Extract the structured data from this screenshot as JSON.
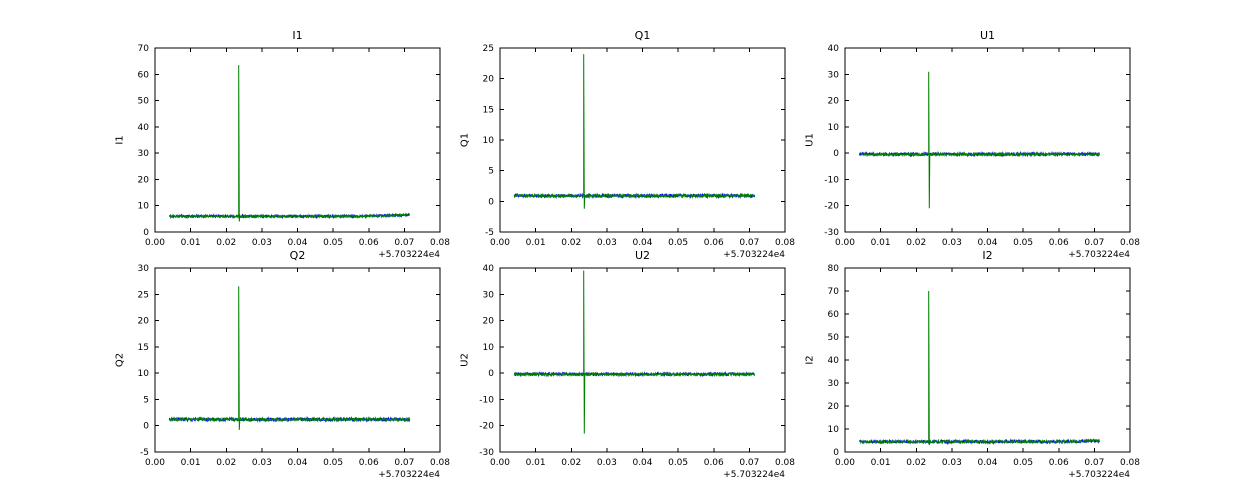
{
  "background": "#ffffff",
  "chart_data": [
    {
      "type": "line",
      "title": "I1",
      "ylabel": "I1",
      "xlim": [
        0,
        0.08
      ],
      "ylim": [
        0,
        70
      ],
      "xtick_labels": [
        "0.00",
        "0.01",
        "0.02",
        "0.03",
        "0.04",
        "0.05",
        "0.06",
        "0.07",
        "0.08"
      ],
      "ytick_labels": [
        "0",
        "10",
        "20",
        "30",
        "40",
        "50",
        "60",
        "70"
      ],
      "x_offset": "+5.703224e4",
      "x_start": 0.004,
      "x_end": 0.0715,
      "baseline": 6.0,
      "noise": 0.45,
      "drift": {
        "start": 0.058,
        "amount": 0.5
      },
      "spike": {
        "x": 0.0235,
        "peak": 63.5,
        "min": 4.0
      },
      "grid": false,
      "legend": "none",
      "series": [
        {
          "name": "blue",
          "color": "#0000ff",
          "spike": false,
          "noise_scale": 1.0
        },
        {
          "name": "green",
          "color": "#008000",
          "spike": true,
          "noise_scale": 0.9
        }
      ]
    },
    {
      "type": "line",
      "title": "Q1",
      "ylabel": "Q1",
      "xlim": [
        0,
        0.08
      ],
      "ylim": [
        -5,
        25
      ],
      "xtick_labels": [
        "0.00",
        "0.01",
        "0.02",
        "0.03",
        "0.04",
        "0.05",
        "0.06",
        "0.07",
        "0.08"
      ],
      "ytick_labels": [
        "-5",
        "0",
        "5",
        "10",
        "15",
        "20",
        "25"
      ],
      "x_offset": "+5.703224e4",
      "x_start": 0.004,
      "x_end": 0.0715,
      "baseline": 0.9,
      "noise": 0.25,
      "spike": {
        "x": 0.0235,
        "peak": 24.0,
        "min": -1.2
      },
      "grid": false,
      "legend": "none",
      "series": [
        {
          "name": "blue",
          "color": "#0000ff",
          "spike": false,
          "noise_scale": 1.0
        },
        {
          "name": "green",
          "color": "#008000",
          "spike": true,
          "noise_scale": 0.9
        }
      ]
    },
    {
      "type": "line",
      "title": "U1",
      "ylabel": "U1",
      "xlim": [
        0,
        0.08
      ],
      "ylim": [
        -30,
        40
      ],
      "xtick_labels": [
        "0.00",
        "0.01",
        "0.02",
        "0.03",
        "0.04",
        "0.05",
        "0.06",
        "0.07",
        "0.08"
      ],
      "ytick_labels": [
        "-30",
        "-20",
        "-10",
        "0",
        "10",
        "20",
        "30",
        "40"
      ],
      "x_offset": "+5.703224e4",
      "x_start": 0.004,
      "x_end": 0.0715,
      "baseline": -0.4,
      "noise": 0.55,
      "spike": {
        "x": 0.0235,
        "peak": 31.0,
        "min": -21.0
      },
      "grid": false,
      "legend": "none",
      "series": [
        {
          "name": "blue",
          "color": "#0000ff",
          "spike": false,
          "noise_scale": 1.0
        },
        {
          "name": "green",
          "color": "#008000",
          "spike": true,
          "noise_scale": 0.9
        }
      ]
    },
    {
      "type": "line",
      "title": "Q2",
      "ylabel": "Q2",
      "xlim": [
        0,
        0.08
      ],
      "ylim": [
        -5,
        30
      ],
      "xtick_labels": [
        "0.00",
        "0.01",
        "0.02",
        "0.03",
        "0.04",
        "0.05",
        "0.06",
        "0.07",
        "0.08"
      ],
      "ytick_labels": [
        "-5",
        "0",
        "5",
        "10",
        "15",
        "20",
        "25",
        "30"
      ],
      "x_offset": "+5.703224e4",
      "x_start": 0.004,
      "x_end": 0.0715,
      "baseline": 1.2,
      "noise": 0.3,
      "spike": {
        "x": 0.0235,
        "peak": 26.5,
        "min": -0.8
      },
      "grid": false,
      "legend": "none",
      "series": [
        {
          "name": "blue",
          "color": "#0000ff",
          "spike": false,
          "noise_scale": 1.0
        },
        {
          "name": "green",
          "color": "#008000",
          "spike": true,
          "noise_scale": 0.9
        }
      ]
    },
    {
      "type": "line",
      "title": "U2",
      "ylabel": "U2",
      "xlim": [
        0,
        0.08
      ],
      "ylim": [
        -30,
        40
      ],
      "xtick_labels": [
        "0.00",
        "0.01",
        "0.02",
        "0.03",
        "0.04",
        "0.05",
        "0.06",
        "0.07",
        "0.08"
      ],
      "ytick_labels": [
        "-30",
        "-20",
        "-10",
        "0",
        "10",
        "20",
        "30",
        "40"
      ],
      "x_offset": "+5.703224e4",
      "x_start": 0.004,
      "x_end": 0.0715,
      "baseline": -0.4,
      "noise": 0.55,
      "spike": {
        "x": 0.0235,
        "peak": 39.0,
        "min": -23.0
      },
      "grid": false,
      "legend": "none",
      "series": [
        {
          "name": "blue",
          "color": "#0000ff",
          "spike": false,
          "noise_scale": 1.0
        },
        {
          "name": "green",
          "color": "#008000",
          "spike": true,
          "noise_scale": 0.9
        }
      ]
    },
    {
      "type": "line",
      "title": "I2",
      "ylabel": "I2",
      "xlim": [
        0,
        0.08
      ],
      "ylim": [
        0,
        80
      ],
      "xtick_labels": [
        "0.00",
        "0.01",
        "0.02",
        "0.03",
        "0.04",
        "0.05",
        "0.06",
        "0.07",
        "0.08"
      ],
      "ytick_labels": [
        "0",
        "10",
        "20",
        "30",
        "40",
        "50",
        "60",
        "70",
        "80"
      ],
      "x_offset": "+5.703224e4",
      "x_start": 0.004,
      "x_end": 0.0715,
      "baseline": 4.5,
      "noise": 0.6,
      "drift": {
        "start": 0.06,
        "amount": 0.4
      },
      "spike": {
        "x": 0.0235,
        "peak": 70.0,
        "min": 3.0
      },
      "grid": false,
      "legend": "none",
      "series": [
        {
          "name": "blue",
          "color": "#0000ff",
          "spike": false,
          "noise_scale": 1.0
        },
        {
          "name": "green",
          "color": "#008000",
          "spike": true,
          "noise_scale": 0.9
        }
      ]
    }
  ]
}
